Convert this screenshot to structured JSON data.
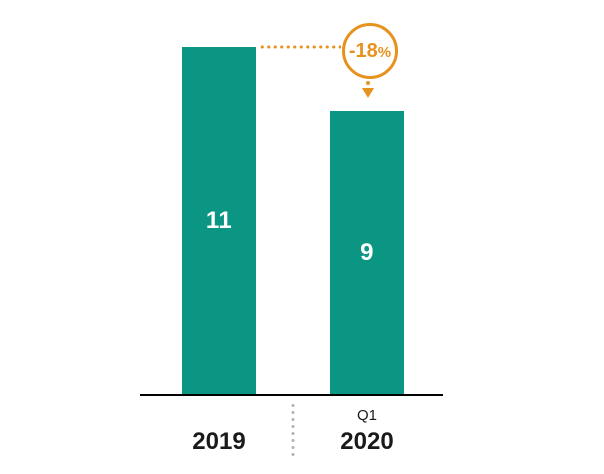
{
  "chart_data": {
    "type": "bar",
    "categories": [
      "2019",
      "Q1 2020"
    ],
    "values": [
      11,
      9
    ],
    "value_labels": [
      "11",
      "9"
    ],
    "x_tick_lines": [
      [
        "2019"
      ],
      [
        "Q1",
        "2020"
      ]
    ],
    "title": "",
    "xlabel": "",
    "ylabel": "",
    "ylim": [
      0,
      11
    ],
    "gridlines": false,
    "legend": false,
    "baseline_axis": true,
    "annotation": {
      "text": "-18%",
      "value": "-18",
      "suffix": "%",
      "shape": "circle-badge",
      "from_category": "2019",
      "to_category": "Q1 2020"
    }
  },
  "colors": {
    "bar": "#0A9682",
    "bar_value_text": "#FFFFFF",
    "accent_orange": "#E8921E",
    "axis": "#000000",
    "separator_gray": "#B3B3B3",
    "label_text": "#1A1A1A",
    "background": "#FFFFFF"
  }
}
